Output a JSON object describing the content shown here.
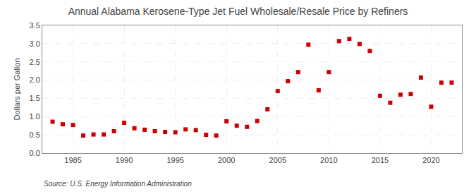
{
  "chart_data": {
    "type": "scatter",
    "title": "Annual Alabama Kerosene-Type Jet Fuel Wholesale/Resale Price by Refiners",
    "ylabel": "Dollars per Gallon",
    "annotations": [
      "Source: U.S. Energy Information Administration"
    ],
    "color": "#cc0000",
    "marker": "square",
    "grid": true,
    "xlim": [
      1982,
      2023
    ],
    "ylim": [
      0.0,
      3.5
    ],
    "xticks": [
      1985,
      1990,
      1995,
      2000,
      2005,
      2010,
      2015,
      2020
    ],
    "yticks": [
      {
        "value": 0.0,
        "label": "0.0"
      },
      0.5,
      {
        "value": 1.0,
        "label": "1.0"
      },
      1.5,
      {
        "value": 2.0,
        "label": "2.0"
      },
      2.5,
      {
        "value": 3.0,
        "label": "3.0"
      },
      3.5
    ],
    "x": [
      1983,
      1984,
      1985,
      1986,
      1987,
      1988,
      1989,
      1990,
      1991,
      1992,
      1993,
      1994,
      1995,
      1996,
      1997,
      1998,
      1999,
      2000,
      2001,
      2002,
      2003,
      2004,
      2005,
      2006,
      2007,
      2008,
      2009,
      2010,
      2011,
      2012,
      2013,
      2014,
      2015,
      2016,
      2017,
      2018,
      2019,
      2020,
      2021,
      2022
    ],
    "values": [
      0.86,
      0.79,
      0.77,
      0.48,
      0.51,
      0.51,
      0.6,
      0.83,
      0.68,
      0.64,
      0.6,
      0.58,
      0.57,
      0.65,
      0.63,
      0.5,
      0.48,
      0.87,
      0.75,
      0.72,
      0.88,
      1.2,
      1.7,
      1.97,
      2.22,
      2.97,
      1.72,
      2.22,
      3.07,
      3.13,
      2.99,
      2.8,
      1.57,
      1.38,
      1.6,
      1.62,
      2.07,
      1.27,
      1.93,
      1.93
    ]
  }
}
